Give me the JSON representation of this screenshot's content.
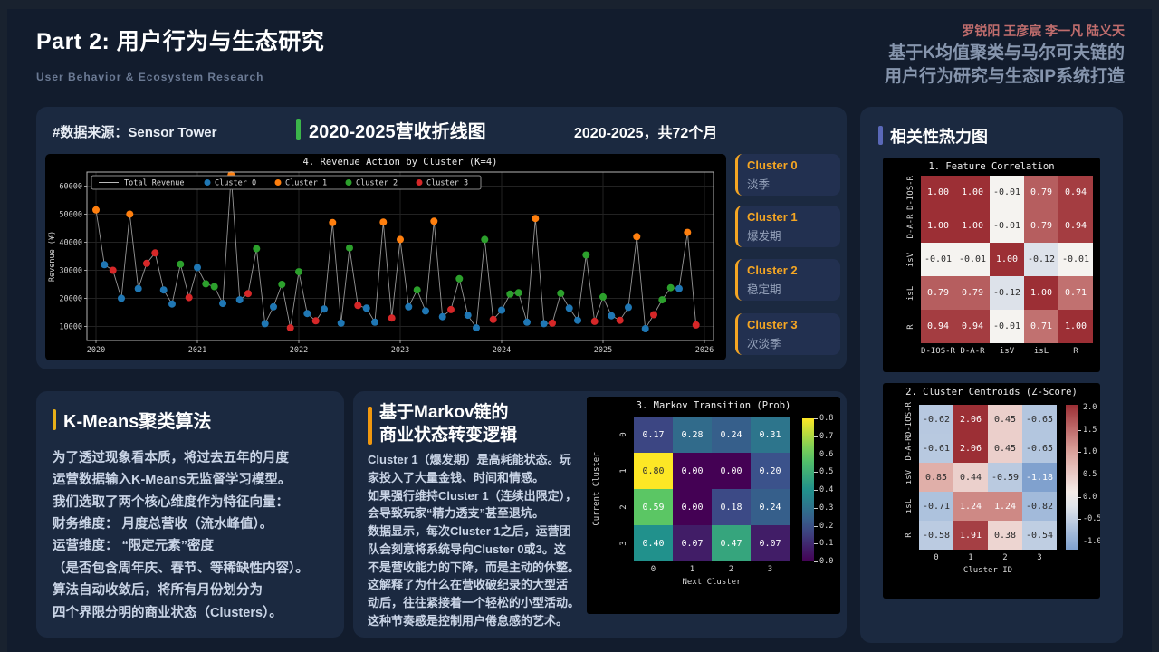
{
  "header": {
    "title": "Part 2: 用户行为与生态研究",
    "subtitle": "User Behavior & Ecosystem Research",
    "authors": "罗锐阳 王彦宸 李一凡 陆义天",
    "tagline_line1": "基于K均值聚类与马尔可夫链的",
    "tagline_line2": "用户行为研究与生态IP系统打造"
  },
  "revenue_panel": {
    "datasource_label": "#数据来源：Sensor Tower",
    "title": "2020-2025营收折线图",
    "period_label": "2020-2025，共72个月",
    "clusters": [
      {
        "name": "Cluster 0",
        "desc": "淡季"
      },
      {
        "name": "Cluster 1",
        "desc": "爆发期"
      },
      {
        "name": "Cluster 2",
        "desc": "稳定期"
      },
      {
        "name": "Cluster 3",
        "desc": "次淡季"
      }
    ]
  },
  "heatmap_panel": {
    "title": "相关性热力图"
  },
  "kmeans_panel": {
    "title": "K-Means聚类算法",
    "body": "为了透过现象看本质，将过去五年的月度\n运营数据输入K-Means无监督学习模型。\n我们选取了两个核心维度作为特征向量：\n财务维度： 月度总营收（流水峰值）。\n运营维度： “限定元素”密度\n（是否包含周年庆、春节、等稀缺性内容）。\n算法自动收敛后，将所有月份划分为\n四个界限分明的商业状态（Clusters）。"
  },
  "markov_panel": {
    "title_line1": "基于Markov链的",
    "title_line2": "商业状态转变逻辑",
    "body": "Cluster 1（爆发期）是高耗能状态。玩\n家投入了大量金钱、时间和情感。\n如果强行维持Cluster 1（连续出限定），\n会导致玩家“精力透支”甚至退坑。\n数据显示，每次Cluster 1之后，运营团\n队会刻意将系统导向Cluster 0或3。这\n不是营收能力的下降，而是主动的休整。\n这解释了为什么在营收破纪录的大型活\n动后，往往紧接着一个轻松的小型活动。\n这种节奏感是控制用户倦怠感的艺术。"
  },
  "colors": {
    "accent_green": "#3bb54a",
    "accent_orange": "#f5a623",
    "accent_gold": "#e8b019",
    "accent_amber": "#f0980f",
    "accent_indigo": "#5a68b8",
    "authors_red": "#c06d6d",
    "panel_bg": "#1b2940",
    "page_bg": "#121c2d",
    "chart_bg": "#000000"
  },
  "chart_data": [
    {
      "type": "scatter",
      "title": "4. Revenue Action by Cluster (K=4)",
      "ylabel": "Revenue (¥)",
      "legend": [
        "Total Revenue",
        "Cluster 0",
        "Cluster 1",
        "Cluster 2",
        "Cluster 3"
      ],
      "x_ticks": [
        2020,
        2021,
        2022,
        2023,
        2024,
        2025,
        2026
      ],
      "y_ticks": [
        10000,
        20000,
        30000,
        40000,
        50000,
        60000
      ],
      "ylim": [
        5000,
        65000
      ],
      "cluster_colors": [
        "#1f77b4",
        "#ff7f0e",
        "#2ca02c",
        "#d62728"
      ],
      "line_color": "#b0b0b0",
      "values": [
        51500,
        32000,
        30000,
        20000,
        50000,
        23500,
        32500,
        36200,
        23000,
        18000,
        32200,
        20300,
        31000,
        25200,
        24200,
        18200,
        64000,
        19500,
        21700,
        37700,
        11000,
        17000,
        25000,
        9500,
        29500,
        14600,
        12000,
        16200,
        47000,
        11200,
        38000,
        17500,
        16500,
        11500,
        47200,
        13000,
        41000,
        17000,
        23000,
        15500,
        47500,
        13500,
        16000,
        27000,
        14000,
        9500,
        41000,
        12500,
        15800,
        21500,
        22000,
        11500,
        48500,
        11000,
        11200,
        21800,
        16500,
        12200,
        35500,
        11800,
        20500,
        13800,
        12200,
        16800,
        42000,
        9200,
        14200,
        19500,
        23800,
        23500,
        43500,
        10500
      ],
      "clusters": [
        1,
        0,
        3,
        0,
        1,
        0,
        3,
        3,
        0,
        0,
        2,
        3,
        0,
        2,
        2,
        0,
        1,
        0,
        3,
        2,
        0,
        0,
        2,
        3,
        2,
        0,
        3,
        0,
        1,
        0,
        2,
        3,
        0,
        0,
        1,
        3,
        1,
        0,
        2,
        0,
        1,
        0,
        3,
        2,
        0,
        0,
        2,
        3,
        0,
        2,
        2,
        0,
        1,
        0,
        3,
        2,
        0,
        0,
        2,
        3,
        2,
        0,
        3,
        0,
        1,
        0,
        3,
        2,
        2,
        0,
        1,
        3
      ]
    },
    {
      "type": "heatmap",
      "title": "1. Feature Correlation",
      "row_labels": [
        "D-IOS-R",
        "D-A-R",
        "isV",
        "isL",
        "R"
      ],
      "col_labels": [
        "D-IOS-R",
        "D-A-R",
        "isV",
        "isL",
        "R"
      ],
      "matrix": [
        [
          1.0,
          1.0,
          -0.01,
          0.79,
          0.94
        ],
        [
          1.0,
          1.0,
          -0.01,
          0.79,
          0.94
        ],
        [
          -0.01,
          -0.01,
          1.0,
          -0.12,
          -0.01
        ],
        [
          0.79,
          0.79,
          -0.12,
          1.0,
          0.71
        ],
        [
          0.94,
          0.94,
          -0.01,
          0.71,
          1.0
        ]
      ],
      "vmin": -1,
      "vmax": 1,
      "cmap": "rdbu"
    },
    {
      "type": "heatmap",
      "title": "2. Cluster Centroids (Z-Score)",
      "row_labels": [
        "D-IOS-R",
        "D-A-R",
        "isV",
        "isL",
        "R"
      ],
      "col_labels": [
        "0",
        "1",
        "2",
        "3"
      ],
      "xlabel": "Cluster ID",
      "matrix": [
        [
          -0.62,
          2.06,
          0.45,
          -0.65
        ],
        [
          -0.61,
          2.06,
          0.45,
          -0.65
        ],
        [
          0.85,
          0.44,
          -0.59,
          -1.18
        ],
        [
          -0.71,
          1.24,
          1.24,
          -0.82
        ],
        [
          -0.58,
          1.91,
          0.38,
          -0.54
        ]
      ],
      "vmin": -2.06,
      "vmax": 2.06,
      "cmap": "rdbu",
      "colorbar": {
        "ticks": [
          2.0,
          1.5,
          1.0,
          0.5,
          0.0,
          -0.5,
          -1.0
        ],
        "min": -1.18,
        "max": 2.06
      }
    },
    {
      "type": "heatmap",
      "title": "3. Markov Transition (Prob)",
      "row_labels": [
        "0",
        "1",
        "2",
        "3"
      ],
      "col_labels": [
        "0",
        "1",
        "2",
        "3"
      ],
      "xlabel": "Next Cluster",
      "ylabel": "Current Cluster",
      "matrix": [
        [
          0.17,
          0.28,
          0.24,
          0.31
        ],
        [
          0.8,
          0.0,
          0.0,
          0.2
        ],
        [
          0.59,
          0.0,
          0.18,
          0.24
        ],
        [
          0.4,
          0.07,
          0.47,
          0.07
        ]
      ],
      "vmin": 0,
      "vmax": 0.8,
      "cmap": "viridis",
      "colorbar": {
        "ticks": [
          0.8,
          0.7,
          0.6,
          0.5,
          0.4,
          0.3,
          0.2,
          0.1,
          0.0
        ],
        "min": 0,
        "max": 0.8
      }
    }
  ]
}
